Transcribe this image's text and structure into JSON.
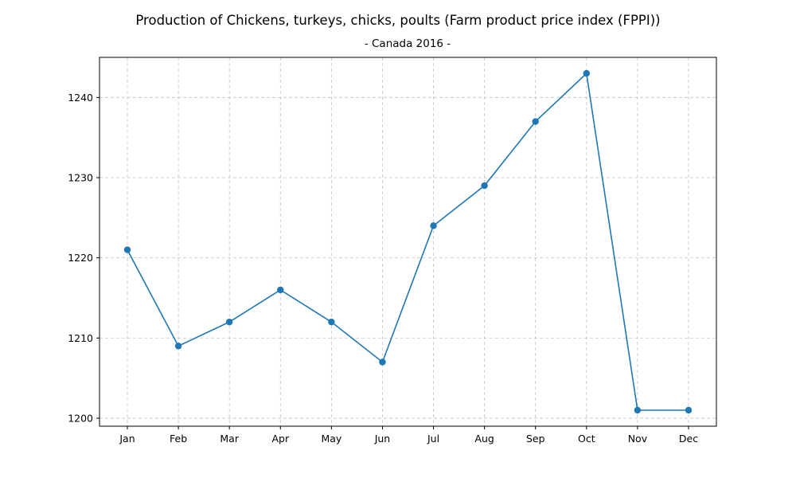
{
  "chart_data": {
    "type": "line",
    "title": "Production of Chickens, turkeys, chicks, poults (Farm product price index (FPPI))",
    "subtitle": "- Canada 2016 -",
    "xlabel": "",
    "ylabel": "",
    "categories": [
      "Jan",
      "Feb",
      "Mar",
      "Apr",
      "May",
      "Jun",
      "Jul",
      "Aug",
      "Sep",
      "Oct",
      "Nov",
      "Dec"
    ],
    "series": [
      {
        "values": [
          1221,
          1209,
          1212,
          1216,
          1212,
          1207,
          1224,
          1229,
          1237,
          1243,
          1201,
          1201
        ],
        "color": "#1f77b4",
        "marker": "circle"
      }
    ],
    "ylim": [
      1199,
      1245
    ],
    "yticks": [
      1200,
      1210,
      1220,
      1230,
      1240
    ],
    "grid": true,
    "legend": "none"
  }
}
